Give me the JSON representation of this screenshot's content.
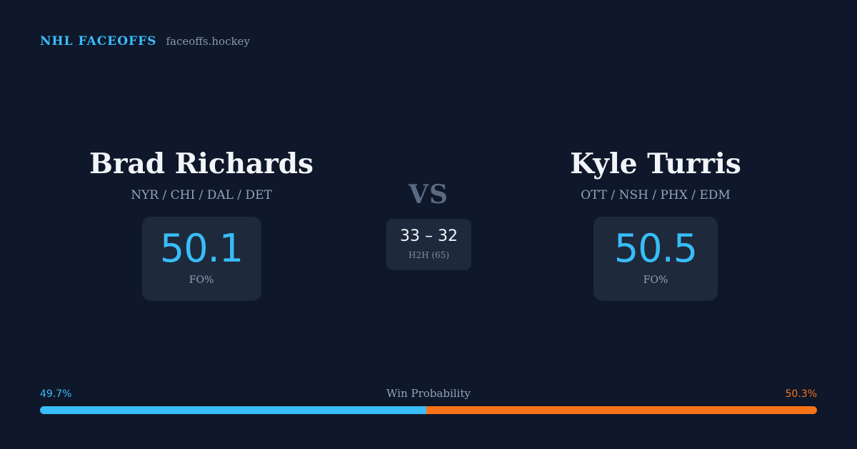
{
  "brand": {
    "name": "NHL FACEOFFS",
    "url": "faceoffs.hockey"
  },
  "player_left": {
    "name": "Brad Richards",
    "teams": "NYR / CHI / DAL / DET",
    "fo_pct": "50.1",
    "fo_label": "FO%"
  },
  "player_right": {
    "name": "Kyle Turris",
    "teams": "OTT / NSH / PHX / EDM",
    "fo_pct": "50.5",
    "fo_label": "FO%"
  },
  "matchup": {
    "vs_label": "VS",
    "h2h_score": "33 – 32",
    "h2h_label": "H2H (65)"
  },
  "win_probability": {
    "title": "Win Probability",
    "left_label": "49.7%",
    "right_label": "50.3%",
    "left_value": 49.7,
    "right_value": 50.3,
    "left_color": "#38bdf8",
    "right_color": "#f97316"
  },
  "colors": {
    "background": "#0f172a",
    "card": "#1e293b",
    "accent": "#38bdf8",
    "orange": "#f97316"
  }
}
